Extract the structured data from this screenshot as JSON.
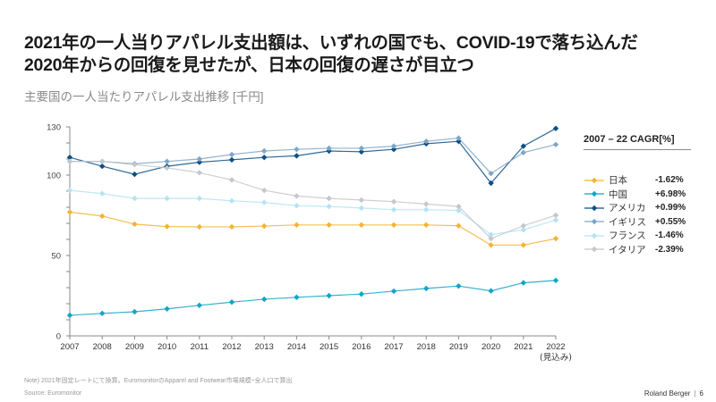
{
  "title_lines": [
    "2021年の一人当りアパレル支出額は、いずれの国でも、COVID-19で落ち込んだ",
    "2020年からの回復を見せたが、日本の回復の遅さが目立つ"
  ],
  "subtitle": "主要国の一人当たりアパレル支出推移 [千円]",
  "legend": {
    "title": "2007 – 22 CAGR[%]",
    "items": [
      {
        "name": "日本",
        "cagr": "-1.62%"
      },
      {
        "name": "中国",
        "cagr": "+6.98%"
      },
      {
        "name": "アメリカ",
        "cagr": "+0.99%"
      },
      {
        "name": "イギリス",
        "cagr": "+0.55%"
      },
      {
        "name": "フランス",
        "cagr": "-1.46%"
      },
      {
        "name": "イタリア",
        "cagr": "-2.39%"
      }
    ]
  },
  "footer": {
    "note": "Note) 2021年固定レートにて換算。EuromonitorのApparel and Footwear市場規模÷全人口で算出",
    "source": "Source: Euromonitor",
    "brand": "Roland Berger",
    "page": "6"
  },
  "chart_data": {
    "type": "line",
    "title": "主要国の一人当たりアパレル支出推移 [千円]",
    "xlabel": "",
    "ylabel": "千円",
    "x": [
      "2007",
      "2008",
      "2009",
      "2010",
      "2011",
      "2012",
      "2013",
      "2014",
      "2015",
      "2016",
      "2017",
      "2018",
      "2019",
      "2020",
      "2021",
      "2022"
    ],
    "x_sublabels": {
      "2022": "(見込み)"
    },
    "ylim": [
      0,
      130
    ],
    "yticks_labeled": [
      0,
      50,
      100,
      130
    ],
    "ytick_step": 10,
    "grid": false,
    "legend_position": "right",
    "series": [
      {
        "name": "日本",
        "color": "#F5B335",
        "values": [
          77,
          74.5,
          69.5,
          68,
          67.8,
          67.8,
          68.3,
          69,
          69,
          69,
          69,
          69,
          68.5,
          56.5,
          56.5,
          60.5
        ]
      },
      {
        "name": "中国",
        "color": "#12A5C4",
        "values": [
          12.8,
          14,
          15,
          16.8,
          19,
          21,
          22.8,
          24,
          25,
          26,
          27.8,
          29.5,
          31,
          28,
          33,
          34.5
        ]
      },
      {
        "name": "アメリカ",
        "color": "#0B4F86",
        "values": [
          111,
          105.5,
          100.5,
          105.5,
          108,
          109.5,
          111,
          112,
          115,
          114.5,
          116,
          119.5,
          121,
          95,
          118,
          129
        ]
      },
      {
        "name": "イギリス",
        "color": "#7FA6C6",
        "values": [
          108.5,
          108.5,
          107,
          108.5,
          110,
          112.8,
          115,
          116,
          116.7,
          116.7,
          118,
          121,
          123,
          101,
          114,
          119
        ]
      },
      {
        "name": "フランス",
        "color": "#B3E3F2",
        "values": [
          90.5,
          88.5,
          85.5,
          85.5,
          85.5,
          84,
          83,
          81,
          80.5,
          79.5,
          78.5,
          78.5,
          78,
          63,
          66,
          72
        ]
      },
      {
        "name": "イタリア",
        "color": "#C4C7CB",
        "values": [
          108.5,
          108.5,
          106.5,
          104.5,
          101.5,
          97,
          90.5,
          87,
          85.5,
          84.5,
          83.5,
          82,
          80.5,
          60.5,
          68.5,
          75
        ]
      }
    ]
  }
}
